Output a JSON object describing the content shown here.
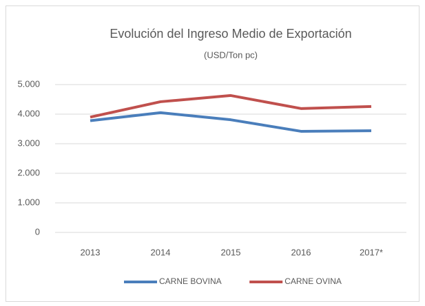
{
  "chart_data": {
    "type": "line",
    "title": "Evolución del Ingreso Medio de Exportación",
    "subtitle": "(USD/Ton pc)",
    "categories": [
      "2013",
      "2014",
      "2015",
      "2016",
      "2017*"
    ],
    "series": [
      {
        "name": "CARNE BOVINA",
        "color": "#4a7ebb",
        "values": [
          3780,
          4050,
          3810,
          3420,
          3440
        ]
      },
      {
        "name": "CARNE OVINA",
        "color": "#c0504d",
        "values": [
          3900,
          4420,
          4630,
          4190,
          4260
        ]
      }
    ],
    "ylim": [
      0,
      5000
    ],
    "yticks": [
      0,
      {
        "value": 1000,
        "label": "1.000"
      },
      {
        "value": 2000,
        "label": "2.000"
      },
      {
        "value": 3000,
        "label": "3.000"
      },
      {
        "value": 4000,
        "label": "4.000"
      },
      {
        "value": 5000,
        "label": "5.000"
      }
    ],
    "grid": true,
    "legend": "bottom"
  }
}
